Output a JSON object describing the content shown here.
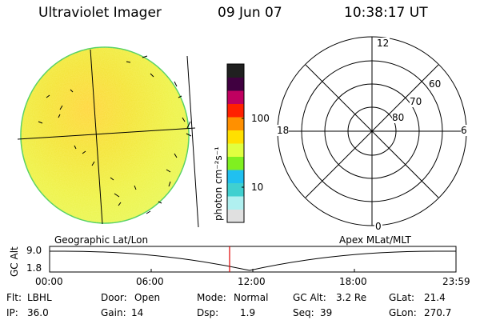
{
  "header": {
    "title": "Ultraviolet Imager",
    "date": "09 Jun 07",
    "time": "10:38:17 UT"
  },
  "colorbar": {
    "label": "photon cm⁻²s⁻¹",
    "ticks": [
      "100",
      "10"
    ],
    "scale": "log",
    "colors": [
      "#e0e0e0",
      "#b0f0f0",
      "#40d0d0",
      "#20c0f0",
      "#80f020",
      "#e0ff40",
      "#ffe000",
      "#ff9000",
      "#ff2000",
      "#c00060",
      "#400040",
      "#202020"
    ]
  },
  "polar": {
    "mlt_labels": {
      "top": "12",
      "left": "18",
      "right": "6",
      "bottom": "0"
    },
    "lat_labels": [
      "60",
      "70",
      "80"
    ]
  },
  "orbit": {
    "left_label": "Geographic Lat/Lon",
    "right_label": "Apex MLat/MLT",
    "ylabel": "GC Alt",
    "y_ticks": [
      "9.0",
      "1.8"
    ],
    "x_ticks": [
      "00:00",
      "06:00",
      "12:00",
      "18:00",
      "23:59"
    ],
    "current_time": "10:38"
  },
  "info": {
    "flt_label": "Flt:",
    "flt_value": "LBHL",
    "ip_label": "IP:",
    "ip_value": "36.0",
    "door_label": "Door:",
    "door_value": "Open",
    "gain_label": "Gain:",
    "gain_value": "14",
    "mode_label": "Mode:",
    "mode_value": "Normal",
    "dsp_label": "Dsp:",
    "dsp_value": "1.9",
    "gcalt_label": "GC Alt:",
    "gcalt_value": "3.2 Re",
    "seq_label": "Seq:",
    "seq_value": "39",
    "glat_label": "GLat:",
    "glat_value": "21.4",
    "glon_label": "GLon:",
    "glon_value": "270.7"
  }
}
